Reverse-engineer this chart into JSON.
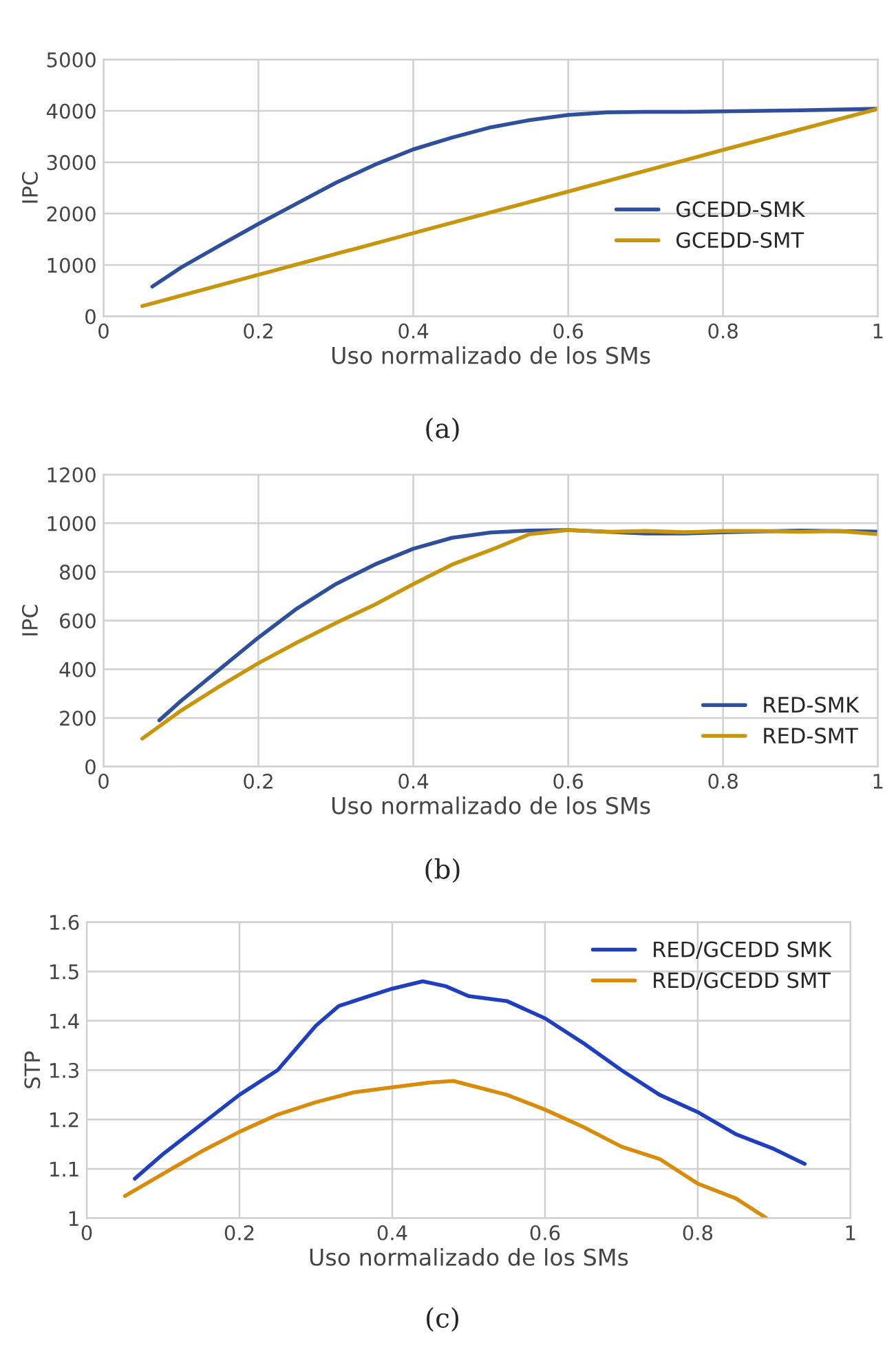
{
  "chart_data": [
    {
      "type": "line",
      "xlabel": "Uso normalizado de los SMs",
      "ylabel": "IPC",
      "annotations": [
        "(a)"
      ],
      "xlim": [
        0,
        1
      ],
      "xticks": [
        0,
        0.2,
        0.4,
        0.6,
        0.8,
        1
      ],
      "ylim": [
        0,
        5000
      ],
      "yticks": [
        0,
        1000,
        2000,
        3000,
        4000,
        5000
      ],
      "grid": true,
      "legend": "right",
      "series": [
        {
          "name": "GCEDD-SMK",
          "color": "#2f4f9a",
          "x": [
            0.063,
            0.1,
            0.15,
            0.2,
            0.25,
            0.3,
            0.35,
            0.4,
            0.45,
            0.5,
            0.55,
            0.6,
            0.65,
            0.7,
            0.75,
            0.8,
            0.9,
            1.0
          ],
          "values": [
            580,
            950,
            1380,
            1800,
            2200,
            2600,
            2950,
            3250,
            3480,
            3680,
            3820,
            3920,
            3970,
            3980,
            3980,
            3990,
            4010,
            4040
          ]
        },
        {
          "name": "GCEDD-SMT",
          "color": "#c8960c",
          "x": [
            0.05,
            0.2,
            0.4,
            0.6,
            0.8,
            1.0
          ],
          "values": [
            200,
            810,
            1620,
            2430,
            3240,
            4040
          ]
        }
      ]
    },
    {
      "type": "line",
      "xlabel": "Uso normalizado de los SMs",
      "ylabel": "IPC",
      "annotations": [
        "(b)"
      ],
      "xlim": [
        0,
        1
      ],
      "xticks": [
        0,
        0.2,
        0.4,
        0.6,
        0.8,
        1
      ],
      "ylim": [
        0,
        1200
      ],
      "yticks": [
        0,
        200,
        400,
        600,
        800,
        1000,
        1200
      ],
      "grid": true,
      "legend": "bottom right",
      "series": [
        {
          "name": "RED-SMK",
          "color": "#2f4f9a",
          "x": [
            0.072,
            0.1,
            0.15,
            0.2,
            0.25,
            0.3,
            0.35,
            0.4,
            0.45,
            0.5,
            0.55,
            0.6,
            0.65,
            0.7,
            0.75,
            0.8,
            0.85,
            0.9,
            1.0
          ],
          "values": [
            190,
            270,
            400,
            530,
            650,
            750,
            830,
            895,
            940,
            962,
            970,
            972,
            965,
            958,
            958,
            963,
            null,
            970,
            965
          ]
        },
        {
          "name": "RED-SMT",
          "color": "#c8960c",
          "x": [
            0.05,
            0.1,
            0.15,
            0.2,
            0.25,
            0.3,
            0.35,
            0.4,
            0.45,
            0.5,
            0.55,
            0.6,
            0.65,
            0.7,
            0.75,
            0.8,
            0.85,
            0.9,
            0.95,
            1.0
          ],
          "values": [
            115,
            230,
            330,
            425,
            510,
            590,
            665,
            750,
            830,
            890,
            955,
            972,
            965,
            968,
            963,
            968,
            968,
            965,
            968,
            955
          ]
        }
      ]
    },
    {
      "type": "line",
      "xlabel": "Uso normalizado de los SMs",
      "ylabel": "STP",
      "annotations": [
        "(c)"
      ],
      "xlim": [
        0,
        1
      ],
      "xticks": [
        0,
        0.2,
        0.4,
        0.6,
        0.8,
        1
      ],
      "ylim": [
        1,
        1.6
      ],
      "yticks": [
        1,
        1.1,
        1.2,
        1.3,
        1.4,
        1.5,
        1.6
      ],
      "grid": true,
      "legend": "top right",
      "series": [
        {
          "name": "RED/GCEDD SMK",
          "color": "#1f3fbf",
          "x": [
            0.063,
            0.1,
            0.15,
            0.2,
            0.25,
            0.3,
            0.33,
            0.37,
            0.4,
            0.44,
            0.47,
            0.5,
            0.55,
            0.6,
            0.65,
            0.7,
            0.75,
            0.8,
            0.85,
            0.9,
            0.94
          ],
          "values": [
            1.08,
            1.13,
            1.19,
            1.25,
            1.3,
            1.39,
            1.43,
            1.45,
            1.465,
            1.48,
            1.47,
            1.45,
            1.44,
            1.405,
            1.355,
            1.3,
            1.25,
            1.215,
            1.17,
            1.14,
            1.11
          ]
        },
        {
          "name": "RED/GCEDD SMT",
          "color": "#d98c0a",
          "x": [
            0.05,
            0.1,
            0.15,
            0.2,
            0.25,
            0.3,
            0.35,
            0.4,
            0.45,
            0.48,
            0.5,
            0.55,
            0.6,
            0.65,
            0.7,
            0.75,
            0.8,
            0.85,
            0.89
          ],
          "values": [
            1.045,
            1.09,
            1.135,
            1.175,
            1.21,
            1.235,
            1.255,
            1.265,
            1.275,
            1.278,
            1.27,
            1.25,
            1.22,
            1.185,
            1.145,
            1.12,
            1.07,
            1.04,
            1.0
          ]
        }
      ]
    }
  ]
}
